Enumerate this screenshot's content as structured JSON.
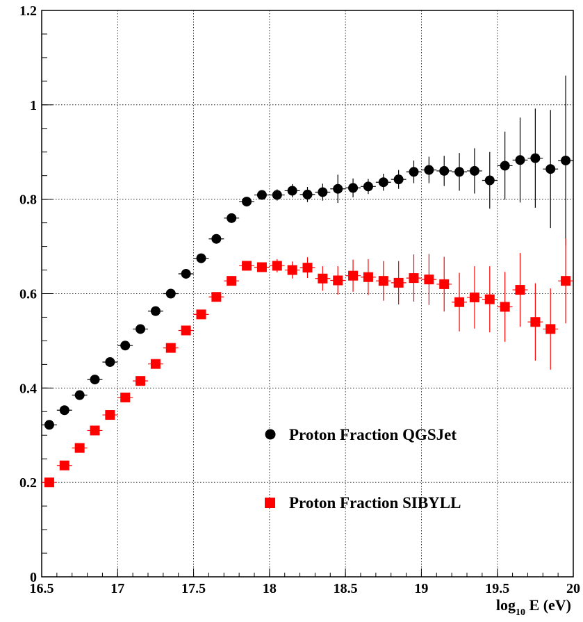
{
  "chart_data": {
    "type": "scatter",
    "title": "",
    "ylabel": "",
    "xlabel_main": "log",
    "xlabel_sub": "10",
    "xlabel_rest": " E (eV)",
    "xlim": [
      16.5,
      20
    ],
    "ylim": [
      0,
      1.2
    ],
    "x_ticks": [
      "16.5",
      "17",
      "17.5",
      "18",
      "18.5",
      "19",
      "19.5",
      "20"
    ],
    "y_ticks": [
      "0",
      "0.2",
      "0.4",
      "0.6",
      "0.8",
      "1",
      "1.2"
    ],
    "grid": true,
    "legend_position": "lower-right",
    "x": [
      16.55,
      16.65,
      16.75,
      16.85,
      16.95,
      17.05,
      17.15,
      17.25,
      17.35,
      17.45,
      17.55,
      17.65,
      17.75,
      17.85,
      17.95,
      18.05,
      18.15,
      18.25,
      18.35,
      18.45,
      18.55,
      18.65,
      18.75,
      18.85,
      18.95,
      19.05,
      19.15,
      19.25,
      19.35,
      19.45,
      19.55,
      19.65,
      19.75,
      19.85,
      19.95
    ],
    "series": [
      {
        "name": "Proton Fraction QGSJet",
        "marker": "circle",
        "color": "#000000",
        "values": [
          0.322,
          0.353,
          0.385,
          0.418,
          0.455,
          0.49,
          0.525,
          0.563,
          0.6,
          0.642,
          0.675,
          0.716,
          0.76,
          0.795,
          0.809,
          0.809,
          0.818,
          0.81,
          0.815,
          0.822,
          0.824,
          0.827,
          0.836,
          0.842,
          0.858,
          0.862,
          0.86,
          0.858,
          0.86,
          0.84,
          0.871,
          0.883,
          0.887,
          0.864,
          0.882
        ],
        "errors": [
          0.003,
          0.003,
          0.003,
          0.004,
          0.004,
          0.004,
          0.004,
          0.005,
          0.005,
          0.006,
          0.006,
          0.007,
          0.008,
          0.009,
          0.01,
          0.012,
          0.014,
          0.016,
          0.018,
          0.03,
          0.02,
          0.016,
          0.018,
          0.02,
          0.024,
          0.028,
          0.032,
          0.04,
          0.048,
          0.06,
          0.072,
          0.09,
          0.105,
          0.125,
          0.18
        ]
      },
      {
        "name": "Proton Fraction SIBYLL",
        "marker": "square",
        "color": "#ff0000",
        "values": [
          0.2,
          0.236,
          0.273,
          0.31,
          0.343,
          0.38,
          0.415,
          0.451,
          0.485,
          0.522,
          0.556,
          0.593,
          0.627,
          0.659,
          0.656,
          0.659,
          0.65,
          0.655,
          0.632,
          0.628,
          0.638,
          0.635,
          0.627,
          0.623,
          0.633,
          0.63,
          0.62,
          0.582,
          0.592,
          0.588,
          0.572,
          0.608,
          0.54,
          0.525,
          0.627
        ]
      }
    ]
  }
}
